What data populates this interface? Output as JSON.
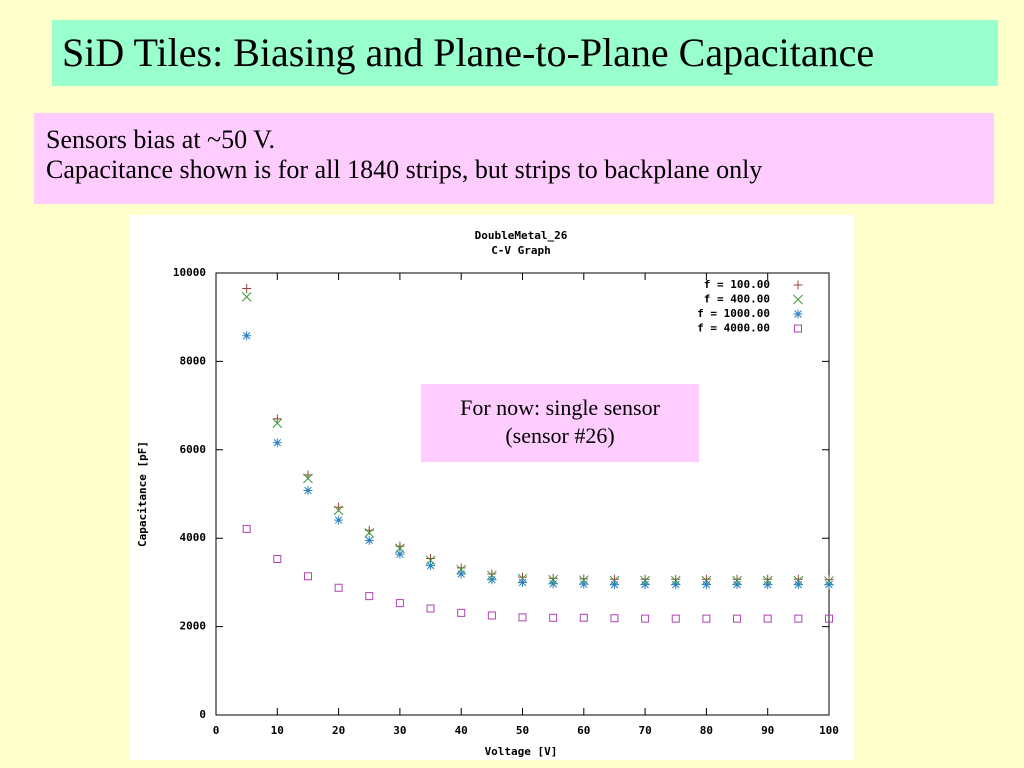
{
  "slide": {
    "title": "SiD Tiles: Biasing and Plane-to-Plane Capacitance",
    "lines": [
      "Sensors bias at ~50 V.",
      "Capacitance shown is for all 1840 strips, but strips to backplane only"
    ]
  },
  "chart_data": {
    "type": "scatter",
    "title": "DoubleMetal_26",
    "subtitle": "C-V Graph",
    "x_label": "Voltage [V]",
    "y_label": "Capacitance [pF]",
    "annotation": [
      "For now: single sensor",
      "(sensor #26)"
    ],
    "x": [
      5,
      10,
      15,
      20,
      25,
      30,
      35,
      40,
      45,
      50,
      55,
      60,
      65,
      70,
      75,
      80,
      85,
      90,
      95,
      100
    ],
    "series": [
      {
        "name": "f = 100.00",
        "color": "#a04038",
        "marker": "plus",
        "values": [
          9650,
          6700,
          5430,
          4700,
          4180,
          3820,
          3540,
          3330,
          3190,
          3120,
          3090,
          3080,
          3070,
          3070,
          3070,
          3070,
          3070,
          3070,
          3070,
          3060
        ]
      },
      {
        "name": "f = 400.00",
        "color": "#3a9a3a",
        "marker": "cross",
        "values": [
          9460,
          6600,
          5350,
          4630,
          4120,
          3770,
          3500,
          3290,
          3160,
          3090,
          3060,
          3050,
          3040,
          3040,
          3040,
          3040,
          3040,
          3040,
          3040,
          3030
        ]
      },
      {
        "name": "f = 1000.00",
        "color": "#2a7fc0",
        "marker": "star",
        "values": [
          8580,
          6160,
          5080,
          4410,
          3950,
          3640,
          3380,
          3190,
          3060,
          3000,
          2970,
          2960,
          2950,
          2950,
          2950,
          2950,
          2950,
          2950,
          2950,
          2950
        ]
      },
      {
        "name": "f = 4000.00",
        "color": "#b040b0",
        "marker": "square",
        "values": [
          4210,
          3530,
          3140,
          2880,
          2690,
          2530,
          2410,
          2310,
          2250,
          2210,
          2200,
          2200,
          2190,
          2180,
          2180,
          2180,
          2180,
          2180,
          2180,
          2180
        ]
      }
    ],
    "xlim": [
      0,
      100
    ],
    "xticks": [
      0,
      10,
      20,
      30,
      40,
      50,
      60,
      70,
      80,
      90,
      100
    ],
    "ylim": [
      0,
      10000
    ],
    "yticks": [
      0,
      2000,
      4000,
      6000,
      8000,
      10000
    ],
    "grid": false,
    "legend": "top-right"
  }
}
